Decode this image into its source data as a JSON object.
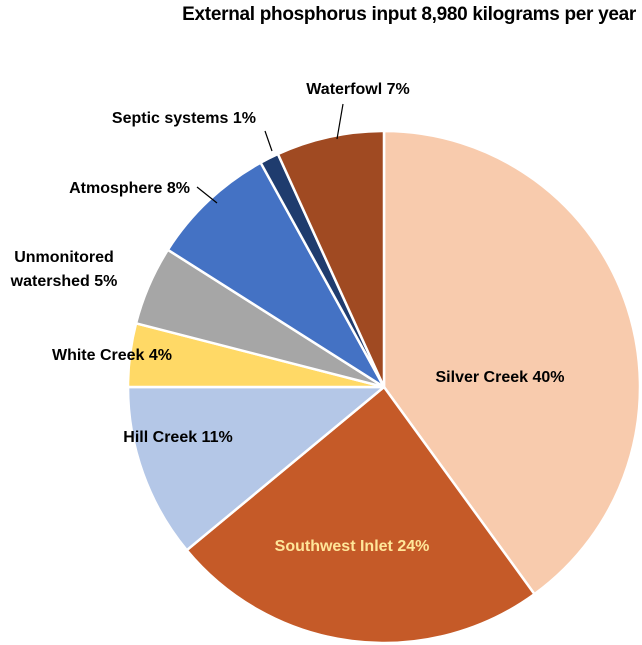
{
  "chart_data": {
    "type": "pie",
    "title": "External phosphorus input 8,980 kilograms per year",
    "slices": [
      {
        "label": [
          "Silver Creek 40%"
        ],
        "value": 40,
        "color": "#f8cbad",
        "label_color": "#000000",
        "leader": false
      },
      {
        "label": [
          "Southwest Inlet 24%"
        ],
        "value": 24,
        "color": "#c55a28",
        "label_color": "#ffe699",
        "leader": false
      },
      {
        "label": [
          "Hill Creek 11%"
        ],
        "value": 11,
        "color": "#b4c7e7",
        "label_color": "#000000",
        "leader": false
      },
      {
        "label": [
          "White Creek 4%"
        ],
        "value": 4,
        "color": "#ffd966",
        "label_color": "#000000",
        "leader": false
      },
      {
        "label": [
          "Unmonitored",
          "watershed 5%"
        ],
        "value": 5,
        "color": "#a6a6a6",
        "label_color": "#000000",
        "leader": false
      },
      {
        "label": [
          "Atmosphere 8%"
        ],
        "value": 8,
        "color": "#4472c4",
        "label_color": "#000000",
        "leader": true
      },
      {
        "label": [
          "Septic systems 1%"
        ],
        "value": 1.2,
        "color": "#1f3c6e",
        "label_color": "#000000",
        "leader": true
      },
      {
        "label": [
          "Waterfowl 7%"
        ],
        "value": 6.8,
        "color": "#a04a22",
        "label_color": "#000000",
        "leader": true
      }
    ]
  }
}
